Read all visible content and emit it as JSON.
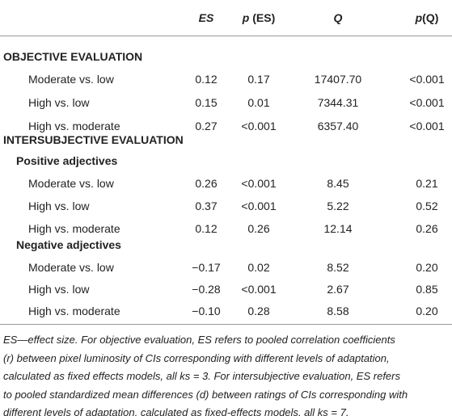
{
  "table": {
    "header": [
      {
        "prefix": "",
        "label": "ES"
      },
      {
        "prefix": "p",
        "label": " (ES)"
      },
      {
        "prefix": "",
        "label": "Q"
      },
      {
        "prefix": "p",
        "label": "(Q)"
      }
    ],
    "rows": [
      {
        "kind": "section",
        "label": "OBJECTIVE EVALUATION"
      },
      {
        "kind": "data",
        "cells": [
          "Moderate vs. low",
          "0.12",
          "0.17",
          "17407.70",
          "<0.001"
        ]
      },
      {
        "kind": "data",
        "cells": [
          "High vs. low",
          "0.15",
          "0.01",
          "7344.31",
          "<0.001"
        ]
      },
      {
        "kind": "data",
        "cells": [
          "High vs. moderate",
          "0.27",
          "<0.001",
          "6357.40",
          "<0.001"
        ]
      },
      {
        "kind": "section",
        "label": "INTERSUBJECTIVE EVALUATION"
      },
      {
        "kind": "subsection",
        "label": "Positive adjectives"
      },
      {
        "kind": "data",
        "cells": [
          "Moderate vs. low",
          "0.26",
          "<0.001",
          "8.45",
          "0.21"
        ]
      },
      {
        "kind": "data",
        "cells": [
          "High vs. low",
          "0.37",
          "<0.001",
          "5.22",
          "0.52"
        ]
      },
      {
        "kind": "data",
        "cells": [
          "High vs. moderate",
          "0.12",
          "0.26",
          "12.14",
          "0.26"
        ]
      },
      {
        "kind": "subsection",
        "label": "Negative adjectives"
      },
      {
        "kind": "data",
        "cells": [
          "Moderate vs. low",
          "−0.17",
          "0.02",
          "8.52",
          "0.20"
        ]
      },
      {
        "kind": "data",
        "cells": [
          "High vs. low",
          "−0.28",
          "<0.001",
          "2.67",
          "0.85"
        ]
      },
      {
        "kind": "data",
        "cells": [
          "High vs. moderate",
          "−0.10",
          "0.28",
          "8.58",
          "0.20"
        ]
      }
    ],
    "footnote": [
      "ES—effect size. For objective evaluation, ES refers to pooled correlation coefficients",
      "(r) between pixel luminosity of CIs corresponding with different levels of adaptation,",
      "calculated as fixed effects models, all ks = 3. For intersubjective evaluation, ES refers",
      "to pooled standardized mean differences (d) between ratings of CIs corresponding with",
      "different levels of adaptation, calculated as fixed-effects models, all ks = 7."
    ]
  }
}
